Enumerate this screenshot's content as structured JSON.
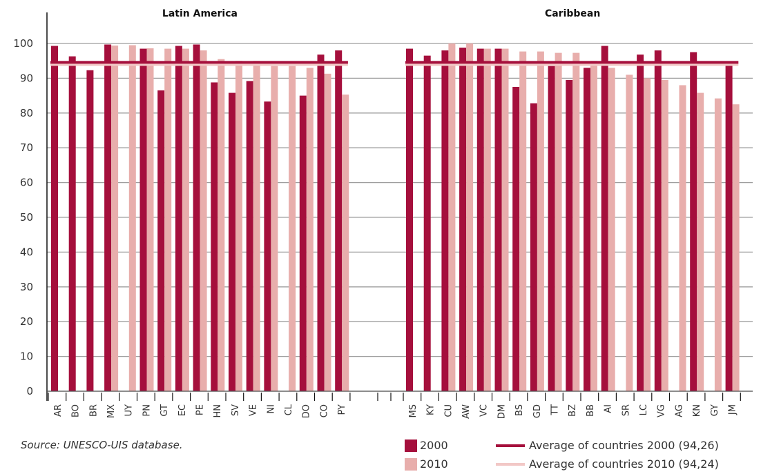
{
  "chart_data": {
    "type": "bar",
    "ylim": [
      0,
      105
    ],
    "yticks": [
      0,
      10,
      20,
      30,
      40,
      50,
      60,
      70,
      80,
      90,
      100
    ],
    "grid": true,
    "groups": [
      {
        "title": "Latin America",
        "categories": [
          "AR",
          "BO",
          "BR",
          "MX",
          "UY",
          "PN",
          "GT",
          "EC",
          "PE",
          "HN",
          "SV",
          "VE",
          "NI",
          "CL",
          "DO",
          "CO",
          "PY"
        ],
        "values_2000": [
          99.3,
          96.3,
          92.3,
          99.7,
          null,
          98.5,
          86.5,
          99.3,
          99.7,
          88.8,
          85.8,
          89.2,
          83.3,
          null,
          85.0,
          96.8,
          98.0
        ],
        "values_2010": [
          null,
          null,
          null,
          99.4,
          99.5,
          98.6,
          98.5,
          98.5,
          98.0,
          95.5,
          95.0,
          95.0,
          93.5,
          93.5,
          93.0,
          91.3,
          85.3
        ]
      },
      {
        "title": "Caribbean",
        "categories": [
          "MS",
          "KY",
          "CU",
          "AW",
          "VC",
          "DM",
          "BS",
          "GD",
          "TT",
          "BZ",
          "BB",
          "AI",
          "SR",
          "LC",
          "VG",
          "AG",
          "KN",
          "GY",
          "JM"
        ],
        "values_2000": [
          98.5,
          96.5,
          98.0,
          98.8,
          98.5,
          98.5,
          87.5,
          82.8,
          93.5,
          89.5,
          93.0,
          99.3,
          null,
          96.8,
          98.0,
          null,
          97.5,
          null,
          93.7
        ],
        "values_2010": [
          null,
          null,
          100.0,
          100.0,
          98.5,
          98.5,
          97.7,
          97.7,
          97.3,
          97.3,
          95.0,
          93.0,
          91.0,
          90.0,
          89.5,
          88.0,
          85.8,
          84.2,
          82.5
        ]
      }
    ],
    "averages": [
      {
        "name": "Average of countries 2000 (94,26)",
        "value": 94.26
      },
      {
        "name": "Average of countries 2010 (94,24)",
        "value": 94.24
      }
    ],
    "legend_position": "bottom-right"
  },
  "colors": {
    "bar_2000": "#a50f3c",
    "bar_2010": "#e8aeac",
    "avg_2000": "#a50f3c",
    "avg_2010": "#f2c8c6",
    "grid": "#9e9e9e"
  },
  "legend": {
    "label_2000": "2000",
    "label_2010": "2010",
    "avg_2000": "Average of countries 2000 (94,26)",
    "avg_2010": "Average of countries 2010 (94,24)"
  },
  "source": "Source: UNESCO-UIS database."
}
